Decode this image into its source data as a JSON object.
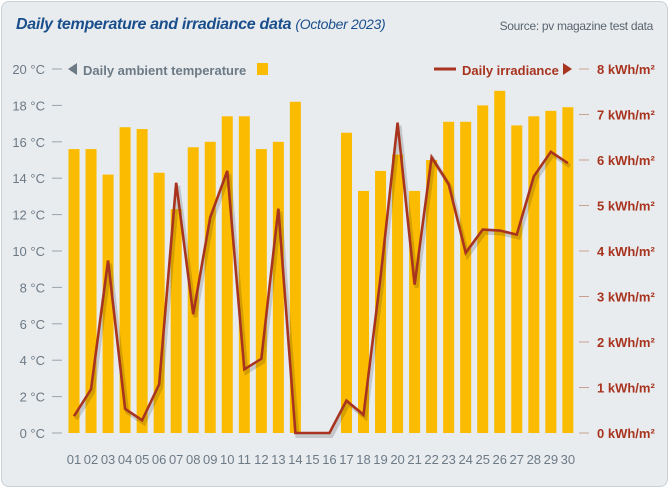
{
  "header": {
    "title": "Daily temperature and irradiance data",
    "subtitle": "(October 2023)",
    "source": "Source: pv magazine test data"
  },
  "chart_data": {
    "type": "bar+line",
    "categories": [
      "01",
      "02",
      "03",
      "04",
      "05",
      "06",
      "07",
      "08",
      "09",
      "10",
      "11",
      "12",
      "13",
      "14",
      "15",
      "16",
      "17",
      "18",
      "19",
      "20",
      "21",
      "22",
      "23",
      "24",
      "25",
      "26",
      "27",
      "28",
      "29",
      "30"
    ],
    "series": [
      {
        "name": "Daily ambient temperature",
        "type": "bar",
        "axis": "left",
        "unit": "°C",
        "color": "#fbbb00",
        "values": [
          15.6,
          15.6,
          14.2,
          16.8,
          16.7,
          14.3,
          12.3,
          15.7,
          16.0,
          17.4,
          17.4,
          15.6,
          16.0,
          18.2,
          null,
          null,
          16.5,
          13.3,
          14.4,
          15.3,
          13.3,
          15.0,
          17.1,
          17.1,
          18.0,
          18.8,
          16.9,
          17.4,
          17.7,
          17.9
        ]
      },
      {
        "name": "Daily irradiance",
        "type": "line",
        "axis": "right",
        "unit": "kWh/m²",
        "color": "#a8341f",
        "values": [
          0.37,
          0.96,
          3.79,
          0.53,
          0.28,
          1.07,
          5.5,
          2.61,
          4.74,
          5.76,
          1.4,
          1.63,
          4.93,
          0,
          0,
          0,
          0.71,
          0.4,
          3.42,
          6.82,
          3.26,
          6.06,
          5.47,
          3.96,
          4.47,
          4.45,
          4.36,
          5.64,
          6.18,
          5.93
        ]
      }
    ],
    "y_left": {
      "ylim": [
        0,
        20
      ],
      "ticks": [
        "0 °C",
        "2 °C",
        "4 °C",
        "6 °C",
        "8 °C",
        "10 °C",
        "12 °C",
        "14 °C",
        "16 °C",
        "18 °C",
        "20 °C"
      ]
    },
    "y_right": {
      "ylim": [
        0,
        8
      ],
      "ticks": [
        "0 kWh/m²",
        "1 kWh/m²",
        "2 kWh/m²",
        "3 kWh/m²",
        "4 kWh/m²",
        "5 kWh/m²",
        "6 kWh/m²",
        "7 kWh/m²",
        "8 kWh/m²"
      ]
    },
    "legend": {
      "left": "Daily ambient temperature",
      "right": "Daily irradiance",
      "placement": "top"
    },
    "grid": false
  }
}
